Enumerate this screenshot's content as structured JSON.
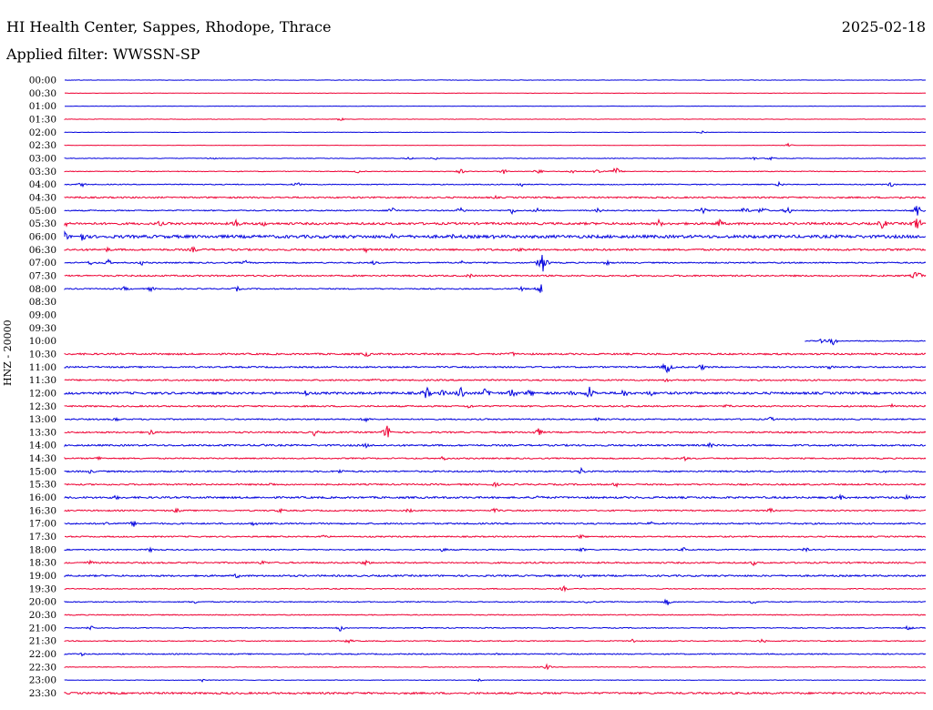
{
  "header": {
    "station": "HI Health Center, Sappes, Rhodope, Thrace",
    "date": "2025-02-18",
    "filter_label": "Applied filter: WWSSN-SP"
  },
  "ylabel": "HNZ - 20000",
  "colors": {
    "blue": "#0000dd",
    "red": "#ee0033"
  },
  "chart_data": {
    "type": "line",
    "title": "HI Health Center, Sappes, Rhodope, Thrace",
    "ylabel": "HNZ - 20000",
    "row_labels": [
      "00:00",
      "00:30",
      "01:00",
      "01:30",
      "02:00",
      "02:30",
      "03:00",
      "03:30",
      "04:00",
      "04:30",
      "05:00",
      "05:30",
      "06:00",
      "06:30",
      "07:00",
      "07:30",
      "08:00",
      "08:30",
      "09:00",
      "09:30",
      "10:00",
      "10:30",
      "11:00",
      "11:30",
      "12:00",
      "12:30",
      "13:00",
      "13:30",
      "14:00",
      "14:30",
      "15:00",
      "15:30",
      "16:00",
      "16:30",
      "17:00",
      "17:30",
      "18:00",
      "18:30",
      "19:00",
      "19:30",
      "20:00",
      "20:30",
      "21:00",
      "21:30",
      "22:00",
      "22:30",
      "23:00",
      "23:30"
    ],
    "series": [
      {
        "time": "00:00",
        "start": 0,
        "end": 1,
        "noise": 0.2,
        "events": []
      },
      {
        "time": "00:30",
        "start": 0,
        "end": 1,
        "noise": 0.2,
        "events": []
      },
      {
        "time": "01:00",
        "start": 0,
        "end": 1,
        "noise": 0.2,
        "events": []
      },
      {
        "time": "01:30",
        "start": 0,
        "end": 1,
        "noise": 0.2,
        "events": [
          [
            0.32,
            2
          ]
        ]
      },
      {
        "time": "02:00",
        "start": 0,
        "end": 1,
        "noise": 0.2,
        "events": [
          [
            0.74,
            2
          ]
        ]
      },
      {
        "time": "02:30",
        "start": 0,
        "end": 1,
        "noise": 0.2,
        "events": [
          [
            0.84,
            2
          ]
        ]
      },
      {
        "time": "03:00",
        "start": 0,
        "end": 1,
        "noise": 0.3,
        "events": [
          [
            0.17,
            2
          ],
          [
            0.4,
            2
          ],
          [
            0.43,
            2
          ],
          [
            0.8,
            2
          ],
          [
            0.82,
            2
          ]
        ]
      },
      {
        "time": "03:30",
        "start": 0,
        "end": 1,
        "noise": 0.4,
        "events": [
          [
            0.34,
            2
          ],
          [
            0.46,
            3
          ],
          [
            0.51,
            3
          ],
          [
            0.55,
            3
          ],
          [
            0.59,
            3
          ],
          [
            0.62,
            4
          ],
          [
            0.64,
            5
          ]
        ]
      },
      {
        "time": "04:00",
        "start": 0,
        "end": 1,
        "noise": 0.5,
        "events": [
          [
            0.02,
            3
          ],
          [
            0.27,
            3
          ],
          [
            0.53,
            3
          ],
          [
            0.83,
            3
          ],
          [
            0.96,
            3
          ]
        ]
      },
      {
        "time": "04:30",
        "start": 0,
        "end": 1,
        "noise": 0.8,
        "events": [
          [
            0.02,
            2
          ],
          [
            0.5,
            2
          ],
          [
            0.97,
            2
          ]
        ]
      },
      {
        "time": "05:00",
        "start": 0,
        "end": 1,
        "noise": 0.6,
        "events": [
          [
            0.38,
            5
          ],
          [
            0.46,
            4
          ],
          [
            0.52,
            4
          ],
          [
            0.55,
            4
          ],
          [
            0.62,
            3
          ],
          [
            0.74,
            8
          ],
          [
            0.79,
            5
          ],
          [
            0.81,
            5
          ],
          [
            0.84,
            5
          ],
          [
            0.99,
            8
          ]
        ]
      },
      {
        "time": "05:30",
        "start": 0,
        "end": 1,
        "noise": 1.2,
        "events": [
          [
            0.0,
            5
          ],
          [
            0.11,
            4
          ],
          [
            0.2,
            6
          ],
          [
            0.23,
            4
          ],
          [
            0.69,
            5
          ],
          [
            0.76,
            6
          ],
          [
            0.95,
            7
          ],
          [
            0.99,
            9
          ]
        ]
      },
      {
        "time": "06:00",
        "start": 0,
        "end": 1,
        "noise": 1.6,
        "events": [
          [
            0.0,
            6
          ],
          [
            0.02,
            7
          ],
          [
            0.38,
            3
          ],
          [
            0.45,
            3
          ],
          [
            0.5,
            3
          ]
        ]
      },
      {
        "time": "06:30",
        "start": 0,
        "end": 1,
        "noise": 1.0,
        "events": [
          [
            0.05,
            3
          ],
          [
            0.15,
            4
          ],
          [
            0.35,
            3
          ],
          [
            0.53,
            3
          ]
        ]
      },
      {
        "time": "07:00",
        "start": 0,
        "end": 1,
        "noise": 0.7,
        "events": [
          [
            0.03,
            3
          ],
          [
            0.05,
            4
          ],
          [
            0.09,
            3
          ],
          [
            0.21,
            3
          ],
          [
            0.36,
            3
          ],
          [
            0.46,
            3
          ],
          [
            0.555,
            12
          ],
          [
            0.63,
            3
          ]
        ]
      },
      {
        "time": "07:30",
        "start": 0,
        "end": 1,
        "noise": 0.8,
        "events": [
          [
            0.47,
            3
          ],
          [
            0.99,
            7
          ]
        ]
      },
      {
        "time": "08:00",
        "start": 0,
        "end": 0.555,
        "noise": 0.6,
        "events": [
          [
            0.07,
            3
          ],
          [
            0.1,
            3
          ],
          [
            0.2,
            3
          ],
          [
            0.53,
            3
          ],
          [
            0.553,
            6
          ]
        ]
      },
      {
        "time": "08:30",
        "start": 0,
        "end": 0,
        "noise": 0,
        "events": []
      },
      {
        "time": "09:00",
        "start": 0,
        "end": 0,
        "noise": 0,
        "events": []
      },
      {
        "time": "09:30",
        "start": 0,
        "end": 0,
        "noise": 0,
        "events": []
      },
      {
        "time": "10:00",
        "start": 0.86,
        "end": 1,
        "noise": 0.5,
        "events": [
          [
            0.88,
            3
          ],
          [
            0.893,
            5
          ]
        ]
      },
      {
        "time": "10:30",
        "start": 0,
        "end": 1,
        "noise": 0.9,
        "events": [
          [
            0.35,
            4
          ],
          [
            0.52,
            3
          ]
        ]
      },
      {
        "time": "11:00",
        "start": 0,
        "end": 1,
        "noise": 0.8,
        "events": [
          [
            0.7,
            8
          ],
          [
            0.74,
            4
          ],
          [
            0.89,
            4
          ]
        ]
      },
      {
        "time": "11:30",
        "start": 0,
        "end": 1,
        "noise": 0.8,
        "events": [
          [
            0.36,
            3
          ],
          [
            0.7,
            3
          ]
        ]
      },
      {
        "time": "12:00",
        "start": 0,
        "end": 1,
        "noise": 1.2,
        "events": [
          [
            0.28,
            4
          ],
          [
            0.42,
            8
          ],
          [
            0.44,
            5
          ],
          [
            0.46,
            9
          ],
          [
            0.49,
            8
          ],
          [
            0.52,
            7
          ],
          [
            0.54,
            5
          ],
          [
            0.59,
            4
          ],
          [
            0.61,
            9
          ],
          [
            0.65,
            6
          ],
          [
            0.68,
            4
          ]
        ]
      },
      {
        "time": "12:30",
        "start": 0,
        "end": 1,
        "noise": 0.8,
        "events": [
          [
            0.47,
            3
          ],
          [
            0.77,
            3
          ],
          [
            0.96,
            3
          ]
        ]
      },
      {
        "time": "13:00",
        "start": 0,
        "end": 1,
        "noise": 0.7,
        "events": [
          [
            0.06,
            3
          ],
          [
            0.35,
            4
          ],
          [
            0.62,
            3
          ],
          [
            0.82,
            3
          ]
        ]
      },
      {
        "time": "13:30",
        "start": 0,
        "end": 1,
        "noise": 0.8,
        "events": [
          [
            0.1,
            4
          ],
          [
            0.29,
            4
          ],
          [
            0.375,
            9
          ],
          [
            0.55,
            5
          ]
        ]
      },
      {
        "time": "14:00",
        "start": 0,
        "end": 1,
        "noise": 0.9,
        "events": [
          [
            0.23,
            3
          ],
          [
            0.35,
            3
          ],
          [
            0.75,
            3
          ]
        ]
      },
      {
        "time": "14:30",
        "start": 0,
        "end": 1,
        "noise": 0.7,
        "events": [
          [
            0.04,
            3
          ],
          [
            0.44,
            3
          ],
          [
            0.72,
            3
          ]
        ]
      },
      {
        "time": "15:00",
        "start": 0,
        "end": 1,
        "noise": 0.8,
        "events": [
          [
            0.03,
            3
          ],
          [
            0.32,
            3
          ],
          [
            0.6,
            4
          ],
          [
            0.95,
            3
          ]
        ]
      },
      {
        "time": "15:30",
        "start": 0,
        "end": 1,
        "noise": 0.8,
        "events": [
          [
            0.24,
            3
          ],
          [
            0.5,
            3
          ],
          [
            0.64,
            3
          ]
        ]
      },
      {
        "time": "16:00",
        "start": 0,
        "end": 1,
        "noise": 1.0,
        "events": [
          [
            0.06,
            3
          ],
          [
            0.55,
            4
          ],
          [
            0.9,
            4
          ],
          [
            0.98,
            4
          ]
        ]
      },
      {
        "time": "16:30",
        "start": 0,
        "end": 1,
        "noise": 0.7,
        "events": [
          [
            0.13,
            3
          ],
          [
            0.25,
            3
          ],
          [
            0.4,
            3
          ],
          [
            0.5,
            3
          ],
          [
            0.82,
            3
          ]
        ]
      },
      {
        "time": "17:00",
        "start": 0,
        "end": 1,
        "noise": 0.8,
        "events": [
          [
            0.05,
            3
          ],
          [
            0.08,
            4
          ],
          [
            0.22,
            3
          ],
          [
            0.68,
            3
          ]
        ]
      },
      {
        "time": "17:30",
        "start": 0,
        "end": 1,
        "noise": 0.7,
        "events": [
          [
            0.3,
            3
          ],
          [
            0.6,
            3
          ]
        ]
      },
      {
        "time": "18:00",
        "start": 0,
        "end": 1,
        "noise": 0.6,
        "events": [
          [
            0.1,
            3
          ],
          [
            0.44,
            3
          ],
          [
            0.6,
            3
          ],
          [
            0.72,
            3
          ],
          [
            0.86,
            3
          ]
        ]
      },
      {
        "time": "18:30",
        "start": 0,
        "end": 1,
        "noise": 0.8,
        "events": [
          [
            0.03,
            3
          ],
          [
            0.23,
            3
          ],
          [
            0.35,
            4
          ],
          [
            0.8,
            3
          ]
        ]
      },
      {
        "time": "19:00",
        "start": 0,
        "end": 1,
        "noise": 0.9,
        "events": [
          [
            0.2,
            3
          ],
          [
            0.6,
            3
          ]
        ]
      },
      {
        "time": "19:30",
        "start": 0,
        "end": 1,
        "noise": 0.5,
        "events": [
          [
            0.58,
            3
          ]
        ]
      },
      {
        "time": "20:00",
        "start": 0,
        "end": 1,
        "noise": 0.5,
        "events": [
          [
            0.15,
            3
          ],
          [
            0.61,
            3
          ],
          [
            0.7,
            4
          ],
          [
            0.8,
            3
          ]
        ]
      },
      {
        "time": "20:30",
        "start": 0,
        "end": 1,
        "noise": 0.5,
        "events": []
      },
      {
        "time": "21:00",
        "start": 0,
        "end": 1,
        "noise": 0.5,
        "events": [
          [
            0.03,
            3
          ],
          [
            0.32,
            4
          ],
          [
            0.98,
            3
          ]
        ]
      },
      {
        "time": "21:30",
        "start": 0,
        "end": 1,
        "noise": 0.5,
        "events": [
          [
            0.33,
            3
          ],
          [
            0.66,
            3
          ],
          [
            0.81,
            3
          ]
        ]
      },
      {
        "time": "22:00",
        "start": 0,
        "end": 1,
        "noise": 0.6,
        "events": [
          [
            0.02,
            2
          ],
          [
            0.5,
            2
          ]
        ]
      },
      {
        "time": "22:30",
        "start": 0,
        "end": 1,
        "noise": 0.4,
        "events": [
          [
            0.56,
            3
          ]
        ]
      },
      {
        "time": "23:00",
        "start": 0,
        "end": 1,
        "noise": 0.3,
        "events": [
          [
            0.16,
            2
          ],
          [
            0.48,
            2
          ]
        ]
      },
      {
        "time": "23:30",
        "start": 0,
        "end": 1,
        "noise": 1.0,
        "events": []
      }
    ]
  }
}
